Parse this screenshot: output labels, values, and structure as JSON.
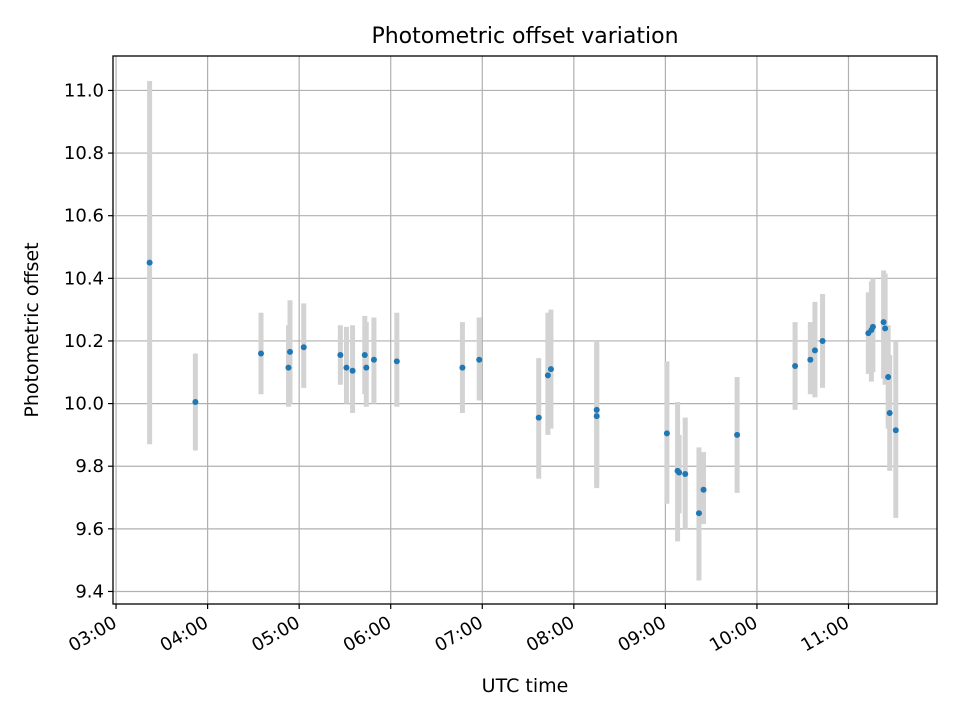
{
  "chart_data": {
    "type": "scatter",
    "title": "Photometric offset variation",
    "xlabel": "UTC time",
    "ylabel": "Photometric offset",
    "xlim": [
      "02:58",
      "11:58"
    ],
    "ylim": [
      9.36,
      11.11
    ],
    "x_ticks": [
      "03:00",
      "04:00",
      "05:00",
      "06:00",
      "07:00",
      "08:00",
      "09:00",
      "10:00",
      "11:00"
    ],
    "y_ticks": [
      9.4,
      9.6,
      9.8,
      10.0,
      10.2,
      10.4,
      10.6,
      10.8,
      11.0
    ],
    "grid": true,
    "colors": {
      "point": "#1f77b4",
      "errorbar": "#d3d3d3",
      "grid": "#b0b0b0"
    },
    "series": [
      {
        "points": [
          {
            "x": "03:22",
            "y": 10.45,
            "lo": 9.87,
            "hi": 11.03
          },
          {
            "x": "03:52",
            "y": 10.005,
            "lo": 9.85,
            "hi": 10.16
          },
          {
            "x": "04:35",
            "y": 10.16,
            "lo": 10.03,
            "hi": 10.29
          },
          {
            "x": "04:53",
            "y": 10.115,
            "lo": 9.99,
            "hi": 10.25
          },
          {
            "x": "04:54",
            "y": 10.165,
            "lo": 10.0,
            "hi": 10.33
          },
          {
            "x": "05:03",
            "y": 10.18,
            "lo": 10.05,
            "hi": 10.32
          },
          {
            "x": "05:27",
            "y": 10.155,
            "lo": 10.06,
            "hi": 10.25
          },
          {
            "x": "05:31",
            "y": 10.115,
            "lo": 10.0,
            "hi": 10.245
          },
          {
            "x": "05:35",
            "y": 10.105,
            "lo": 9.97,
            "hi": 10.25
          },
          {
            "x": "05:43",
            "y": 10.155,
            "lo": 10.03,
            "hi": 10.28
          },
          {
            "x": "05:44",
            "y": 10.115,
            "lo": 9.99,
            "hi": 10.26
          },
          {
            "x": "05:49",
            "y": 10.14,
            "lo": 10.0,
            "hi": 10.275
          },
          {
            "x": "06:04",
            "y": 10.135,
            "lo": 9.99,
            "hi": 10.29
          },
          {
            "x": "06:47",
            "y": 10.115,
            "lo": 9.97,
            "hi": 10.26
          },
          {
            "x": "06:58",
            "y": 10.14,
            "lo": 10.01,
            "hi": 10.275
          },
          {
            "x": "07:37",
            "y": 9.955,
            "lo": 9.76,
            "hi": 10.145
          },
          {
            "x": "07:43",
            "y": 10.09,
            "lo": 9.9,
            "hi": 10.29
          },
          {
            "x": "07:45",
            "y": 10.11,
            "lo": 9.92,
            "hi": 10.3
          },
          {
            "x": "08:15",
            "y": 9.96,
            "lo": 9.73,
            "hi": 10.19
          },
          {
            "x": "08:15",
            "y": 9.98,
            "lo": 9.74,
            "hi": 10.2
          },
          {
            "x": "09:01",
            "y": 9.905,
            "lo": 9.68,
            "hi": 10.135
          },
          {
            "x": "09:08",
            "y": 9.785,
            "lo": 9.56,
            "hi": 10.005
          },
          {
            "x": "09:09",
            "y": 9.78,
            "lo": 9.65,
            "hi": 9.9
          },
          {
            "x": "09:13",
            "y": 9.775,
            "lo": 9.6,
            "hi": 9.955
          },
          {
            "x": "09:22",
            "y": 9.65,
            "lo": 9.435,
            "hi": 9.86
          },
          {
            "x": "09:25",
            "y": 9.725,
            "lo": 9.615,
            "hi": 9.845
          },
          {
            "x": "09:47",
            "y": 9.9,
            "lo": 9.715,
            "hi": 10.085
          },
          {
            "x": "10:25",
            "y": 10.12,
            "lo": 9.98,
            "hi": 10.26
          },
          {
            "x": "10:35",
            "y": 10.14,
            "lo": 10.03,
            "hi": 10.26
          },
          {
            "x": "10:38",
            "y": 10.17,
            "lo": 10.02,
            "hi": 10.325
          },
          {
            "x": "10:43",
            "y": 10.2,
            "lo": 10.05,
            "hi": 10.35
          },
          {
            "x": "11:13",
            "y": 10.225,
            "lo": 10.095,
            "hi": 10.355
          },
          {
            "x": "11:15",
            "y": 10.235,
            "lo": 10.07,
            "hi": 10.39
          },
          {
            "x": "11:16",
            "y": 10.245,
            "lo": 10.1,
            "hi": 10.4
          },
          {
            "x": "11:23",
            "y": 10.26,
            "lo": 10.08,
            "hi": 10.425
          },
          {
            "x": "11:24",
            "y": 10.24,
            "lo": 10.06,
            "hi": 10.415
          },
          {
            "x": "11:26",
            "y": 10.085,
            "lo": 9.92,
            "hi": 10.25
          },
          {
            "x": "11:27",
            "y": 9.97,
            "lo": 9.785,
            "hi": 10.155
          },
          {
            "x": "11:31",
            "y": 9.915,
            "lo": 9.635,
            "hi": 10.2
          }
        ]
      }
    ]
  }
}
